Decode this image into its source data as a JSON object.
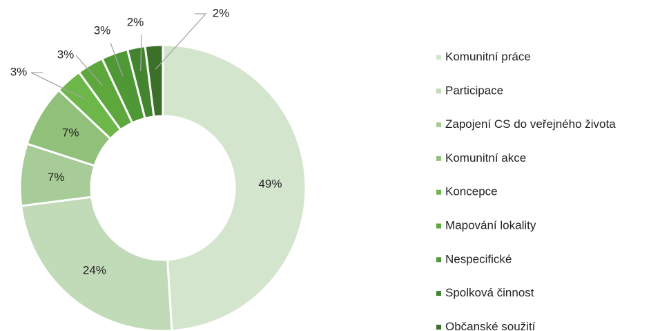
{
  "chart_data": {
    "type": "donut",
    "categories": [
      "Komunitní práce",
      "Participace",
      "Zapojení CS do veřejného života",
      "Komunitní akce",
      "Koncepce",
      "Mapování lokality",
      "Nespecifické",
      "Spolková činnost",
      "Občanské soužití"
    ],
    "values": [
      49,
      24,
      7,
      7,
      3,
      3,
      3,
      2,
      2
    ],
    "value_labels": [
      "49%",
      "24%",
      "7%",
      "7%",
      "3%",
      "3%",
      "3%",
      "2%",
      "2%"
    ],
    "colors": [
      "#d3e5cd",
      "#c1dab7",
      "#a8cc97",
      "#91c07b",
      "#6cb64a",
      "#5ea73d",
      "#4e9835",
      "#43852f",
      "#3a7028"
    ],
    "legend": "right"
  }
}
